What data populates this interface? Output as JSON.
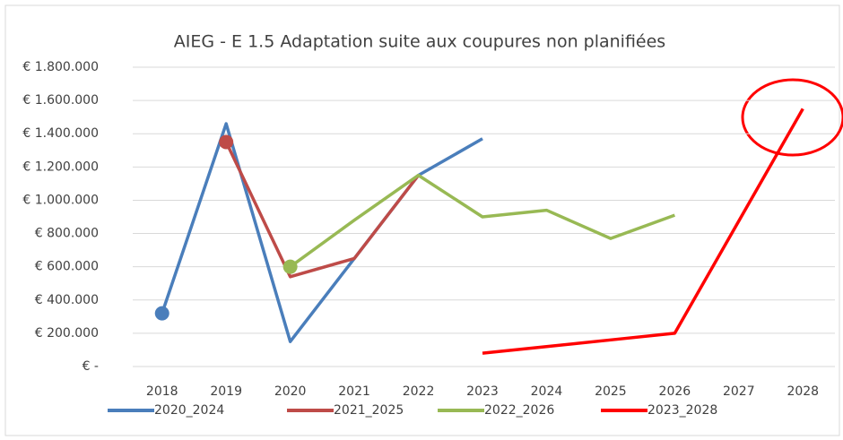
{
  "chart_data": {
    "type": "line",
    "title": "AIEG - E 1.5 Adaptation suite aux coupures non planifiées",
    "categories": [
      "2018",
      "2019",
      "2020",
      "2021",
      "2022",
      "2023",
      "2024",
      "2025",
      "2026",
      "2027",
      "2028"
    ],
    "series": [
      {
        "name": "2020_2024",
        "color": "#4a7ebb",
        "marker": true,
        "values": [
          320000,
          1460000,
          150000,
          650000,
          1150000,
          1370000,
          null,
          null,
          null,
          null,
          null
        ]
      },
      {
        "name": "2021_2025",
        "color": "#be4b48",
        "marker": true,
        "values": [
          null,
          1350000,
          540000,
          650000,
          1150000,
          null,
          null,
          null,
          null,
          null,
          null
        ]
      },
      {
        "name": "2022_2026",
        "color": "#98b954",
        "marker": true,
        "values": [
          null,
          null,
          600000,
          880000,
          1150000,
          900000,
          940000,
          770000,
          910000,
          null,
          null
        ]
      },
      {
        "name": "2023_2028",
        "color": "#ff0000",
        "marker": false,
        "values": [
          null,
          null,
          null,
          null,
          null,
          80000,
          120000,
          160000,
          200000,
          875000,
          1550000
        ]
      }
    ],
    "ylim": [
      0,
      1800000
    ],
    "yticks": [
      {
        "value": 0,
        "label": "€ -"
      },
      {
        "value": 200000,
        "label": "€ 200.000"
      },
      {
        "value": 400000,
        "label": "€ 400.000"
      },
      {
        "value": 600000,
        "label": "€ 600.000"
      },
      {
        "value": 800000,
        "label": "€ 800.000"
      },
      {
        "value": 1000000,
        "label": "€ 1.000.000"
      },
      {
        "value": 1200000,
        "label": "€ 1.200.000"
      },
      {
        "value": 1400000,
        "label": "€ 1.400.000"
      },
      {
        "value": 1600000,
        "label": "€ 1.600.000"
      },
      {
        "value": 1800000,
        "label": "€ 1.800.000"
      }
    ],
    "grid": true,
    "legend": "bottom"
  }
}
